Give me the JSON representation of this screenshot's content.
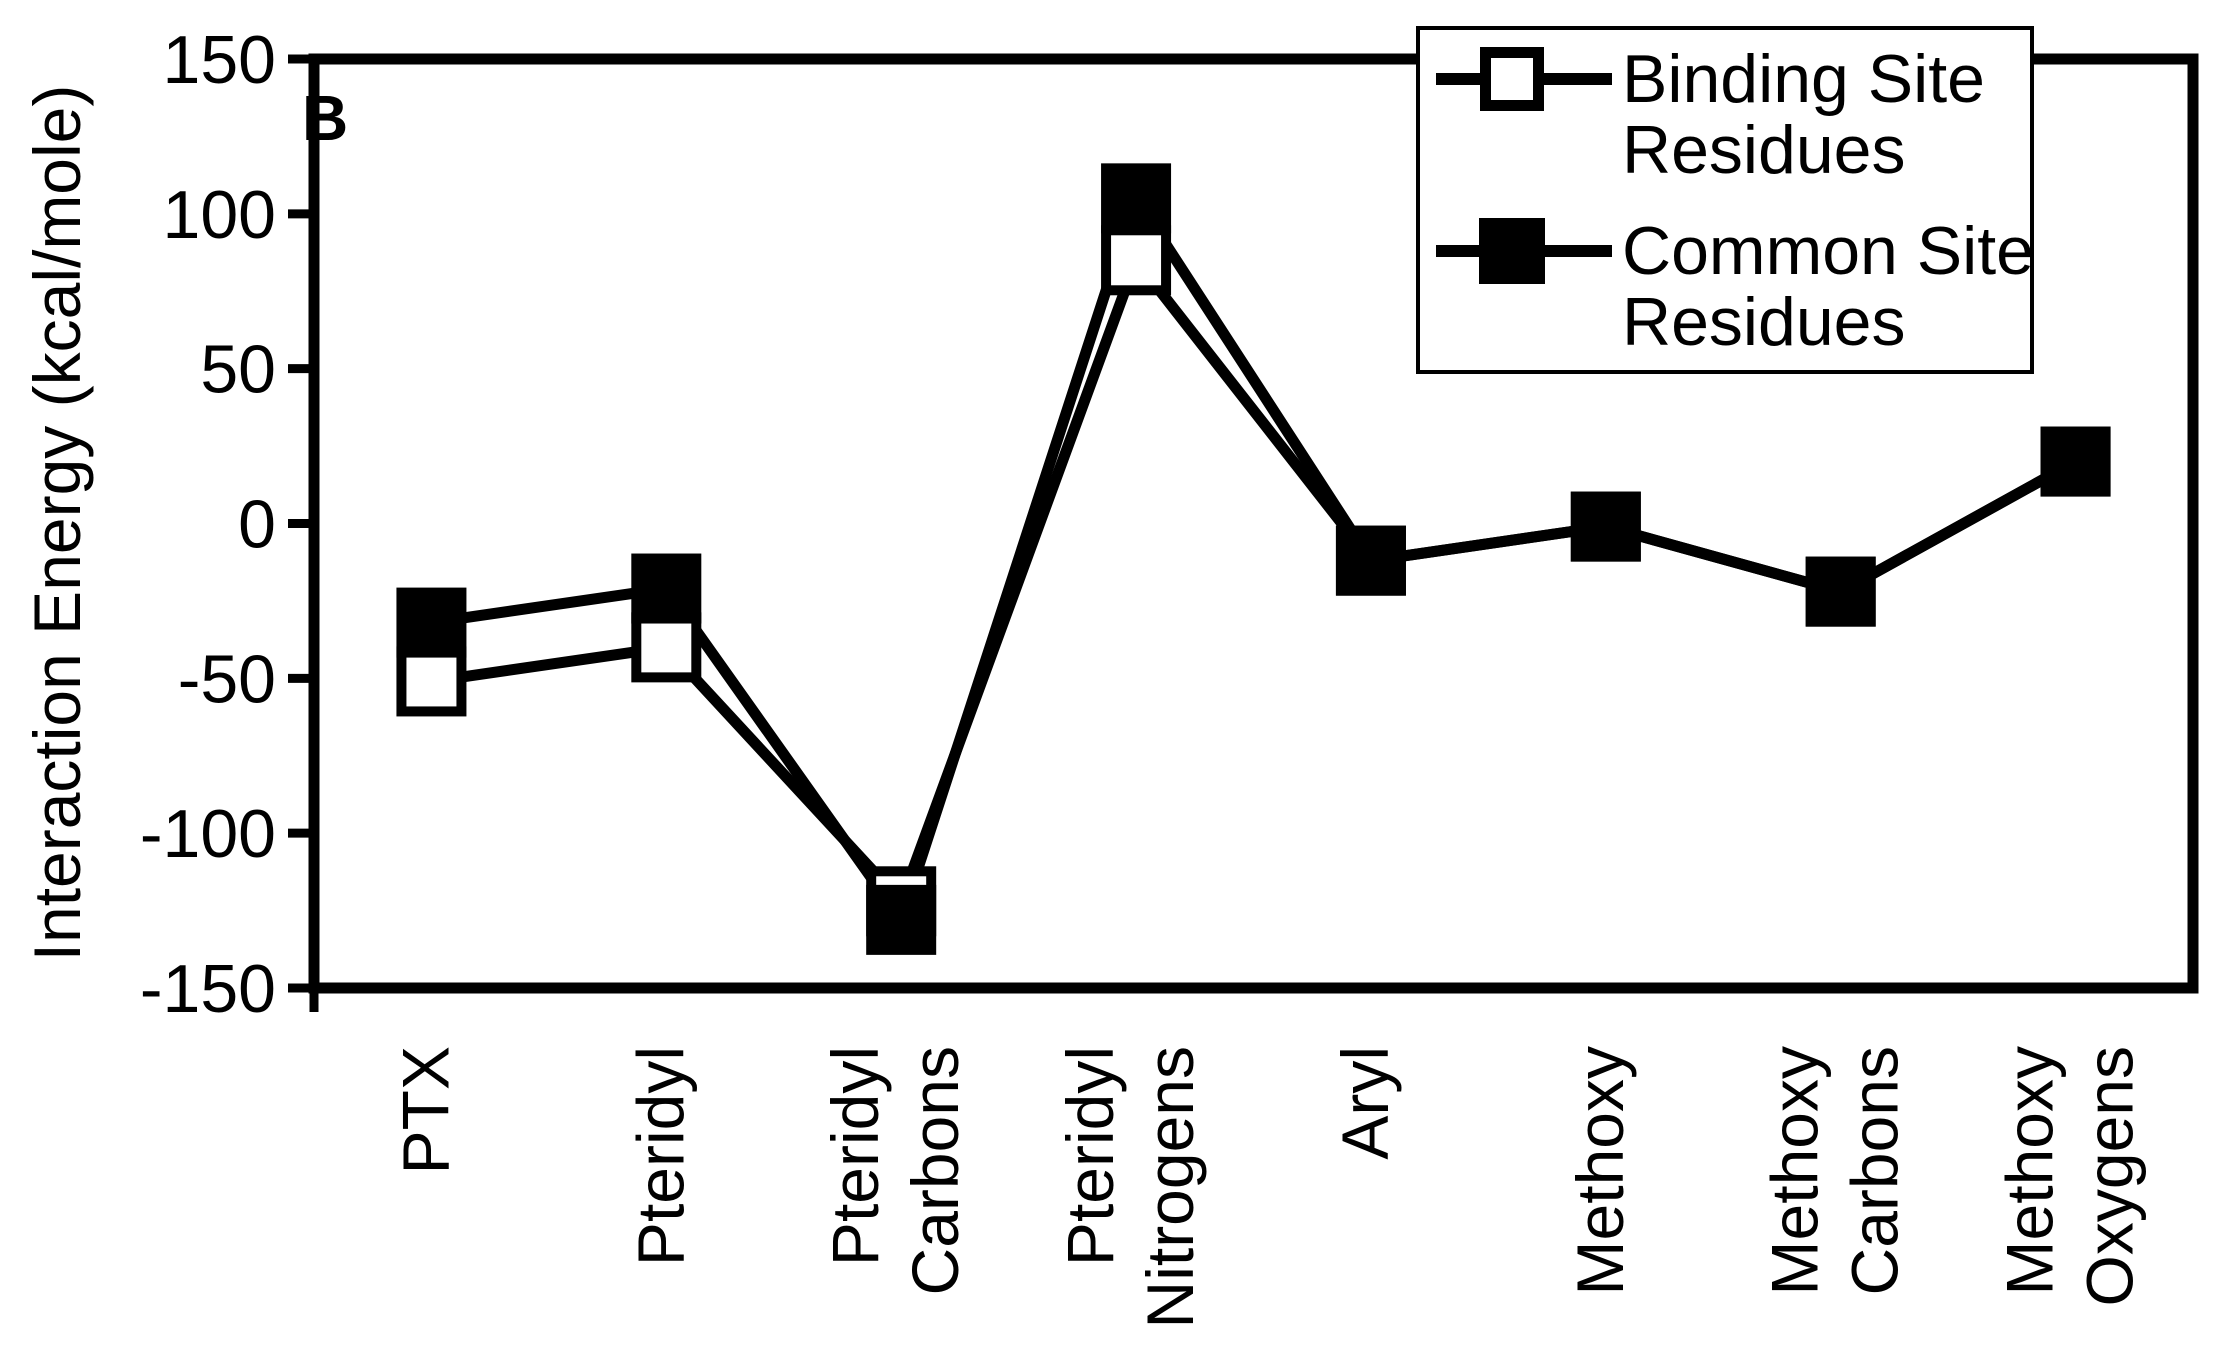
{
  "figure_label": "B",
  "y_axis": {
    "title": "Interaction Energy (kcal/mole)",
    "tick_values": [
      150,
      100,
      50,
      0,
      -50,
      -100,
      -150
    ],
    "min": -150,
    "max": 150
  },
  "x_axis": {
    "category_label_lines": [
      [
        "PTX"
      ],
      [
        "Pteridyl"
      ],
      [
        "Pteridyl",
        "Carbons"
      ],
      [
        "Pteridyl",
        "Nitrogens"
      ],
      [
        "Aryl"
      ],
      [
        "Methoxy"
      ],
      [
        "Methoxy",
        "Carbons"
      ],
      [
        "Methoxy",
        "Oxygens"
      ]
    ]
  },
  "legend": {
    "entries": [
      {
        "label_lines": [
          "Binding Site",
          "Residues"
        ],
        "marker": "open-square"
      },
      {
        "label_lines": [
          "Common Site",
          "Residues"
        ],
        "marker": "filled-square"
      }
    ]
  },
  "chart_data": {
    "type": "line",
    "categories": [
      "PTX",
      "Pteridyl",
      "Pteridyl Carbons",
      "Pteridyl Nitrogens",
      "Aryl",
      "Methoxy",
      "Methoxy Carbons",
      "Methoxy Oxygens"
    ],
    "series": [
      {
        "name": "Binding Site Residues",
        "marker": "open-square",
        "values": [
          -51,
          -40,
          -122,
          85,
          -12,
          -1,
          -22,
          20
        ]
      },
      {
        "name": "Common Site Residues",
        "marker": "filled-square",
        "values": [
          -32,
          -21,
          -128,
          105,
          -12,
          -1,
          -22,
          20
        ]
      }
    ],
    "title": "",
    "xlabel": "",
    "ylabel": "Interaction Energy (kcal/mole)",
    "ylim": [
      -150,
      150
    ],
    "grid": false,
    "legend_position": "top-right"
  },
  "colors": {
    "foreground": "#000000",
    "background": "#ffffff"
  }
}
